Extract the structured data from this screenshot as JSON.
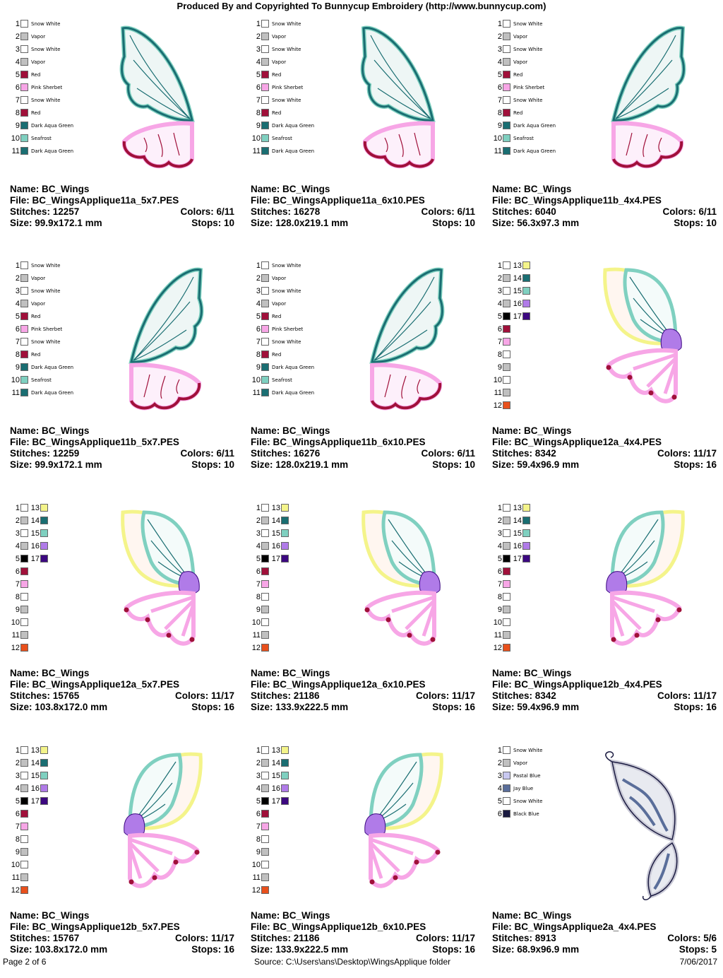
{
  "header": "Produced By and Copyrighted To Bunnycup Embroidery (http://www.bunnycup.com)",
  "colors": {
    "snow_white": "#ffffff",
    "vapor": "#c0c0c0",
    "red": "#a0103a",
    "pink_sherbet": "#f7a6e6",
    "dark_aqua_green": "#1a6e72",
    "seafrost": "#7fd0c0",
    "yellow": "#f4f48a",
    "purple": "#b07be8",
    "black": "#000000",
    "indigo": "#3c0880",
    "orange": "#e8501c",
    "pastal_blue": "#c8c8f0",
    "jay_blue": "#5a6e9a"
  },
  "legend_a": [
    {
      "n": "1",
      "name": "Snow White"
    },
    {
      "n": "2",
      "name": "Vapor"
    },
    {
      "n": "3",
      "name": "Snow White"
    },
    {
      "n": "4",
      "name": "Vapor"
    },
    {
      "n": "5",
      "name": "Red"
    },
    {
      "n": "6",
      "name": "Pink Sherbet"
    },
    {
      "n": "7",
      "name": "Snow White"
    },
    {
      "n": "8",
      "name": "Red"
    },
    {
      "n": "9",
      "name": "Dark Aqua Green"
    },
    {
      "n": "10",
      "name": "Seafrost"
    },
    {
      "n": "11",
      "name": "Dark Aqua Green"
    }
  ],
  "legend_c": [
    {
      "n": "1",
      "name": "Snow White"
    },
    {
      "n": "2",
      "name": "Vapor"
    },
    {
      "n": "3",
      "name": "Pastal Blue"
    },
    {
      "n": "4",
      "name": "Jay Blue"
    },
    {
      "n": "5",
      "name": "Snow White"
    },
    {
      "n": "6",
      "name": "Black Blue"
    }
  ],
  "legend_b_numbers": [
    "1",
    "2",
    "3",
    "4",
    "5",
    "6",
    "7",
    "8",
    "9",
    "10",
    "11",
    "12"
  ],
  "legend_b_extra": [
    "13",
    "14",
    "15",
    "16",
    "17"
  ],
  "designs": [
    {
      "name": "Name: BC_Wings",
      "file": "File: BC_WingsApplique11a_5x7.PES",
      "stitches": "Stitches: 12257",
      "colors": "Colors: 6/11",
      "size": "Size: 99.9x172.1 mm",
      "stops": "Stops: 10"
    },
    {
      "name": "Name: BC_Wings",
      "file": "File: BC_WingsApplique11a_6x10.PES",
      "stitches": "Stitches: 16278",
      "colors": "Colors: 6/11",
      "size": "Size: 128.0x219.1 mm",
      "stops": "Stops: 10"
    },
    {
      "name": "Name: BC_Wings",
      "file": "File: BC_WingsApplique11b_4x4.PES",
      "stitches": "Stitches: 6040",
      "colors": "Colors: 6/11",
      "size": "Size: 56.3x97.3 mm",
      "stops": "Stops: 10"
    },
    {
      "name": "Name: BC_Wings",
      "file": "File: BC_WingsApplique11b_5x7.PES",
      "stitches": "Stitches: 12259",
      "colors": "Colors: 6/11",
      "size": "Size: 99.9x172.1 mm",
      "stops": "Stops: 10"
    },
    {
      "name": "Name: BC_Wings",
      "file": "File: BC_WingsApplique11b_6x10.PES",
      "stitches": "Stitches: 16276",
      "colors": "Colors: 6/11",
      "size": "Size: 128.0x219.1 mm",
      "stops": "Stops: 10"
    },
    {
      "name": "Name: BC_Wings",
      "file": "File: BC_WingsApplique12a_4x4.PES",
      "stitches": "Stitches: 8342",
      "colors": "Colors: 11/17",
      "size": "Size: 59.4x96.9 mm",
      "stops": "Stops: 16"
    },
    {
      "name": "Name: BC_Wings",
      "file": "File: BC_WingsApplique12a_5x7.PES",
      "stitches": "Stitches: 15765",
      "colors": "Colors: 11/17",
      "size": "Size: 103.8x172.0 mm",
      "stops": "Stops: 16"
    },
    {
      "name": "Name: BC_Wings",
      "file": "File: BC_WingsApplique12a_6x10.PES",
      "stitches": "Stitches: 21186",
      "colors": "Colors: 11/17",
      "size": "Size: 133.9x222.5 mm",
      "stops": "Stops: 16"
    },
    {
      "name": "Name: BC_Wings",
      "file": "File: BC_WingsApplique12b_4x4.PES",
      "stitches": "Stitches: 8342",
      "colors": "Colors: 11/17",
      "size": "Size: 59.4x96.9 mm",
      "stops": "Stops: 16"
    },
    {
      "name": "Name: BC_Wings",
      "file": "File: BC_WingsApplique12b_5x7.PES",
      "stitches": "Stitches: 15767",
      "colors": "Colors: 11/17",
      "size": "Size: 103.8x172.0 mm",
      "stops": "Stops: 16"
    },
    {
      "name": "Name: BC_Wings",
      "file": "File: BC_WingsApplique12b_6x10.PES",
      "stitches": "Stitches: 21186",
      "colors": "Colors: 11/17",
      "size": "Size: 133.9x222.5 mm",
      "stops": "Stops: 16"
    },
    {
      "name": "Name: BC_Wings",
      "file": "File: BC_WingsApplique2a_4x4.PES",
      "stitches": "Stitches: 8913",
      "colors": "Colors: 5/6",
      "size": "Size: 68.9x96.9 mm",
      "stops": "Stops: 5"
    }
  ],
  "footer": {
    "page": "Page 2 of 6",
    "source": "Source: C:\\Users\\ans\\Desktop\\WingsApplique folder",
    "date": "7/06/2017"
  }
}
